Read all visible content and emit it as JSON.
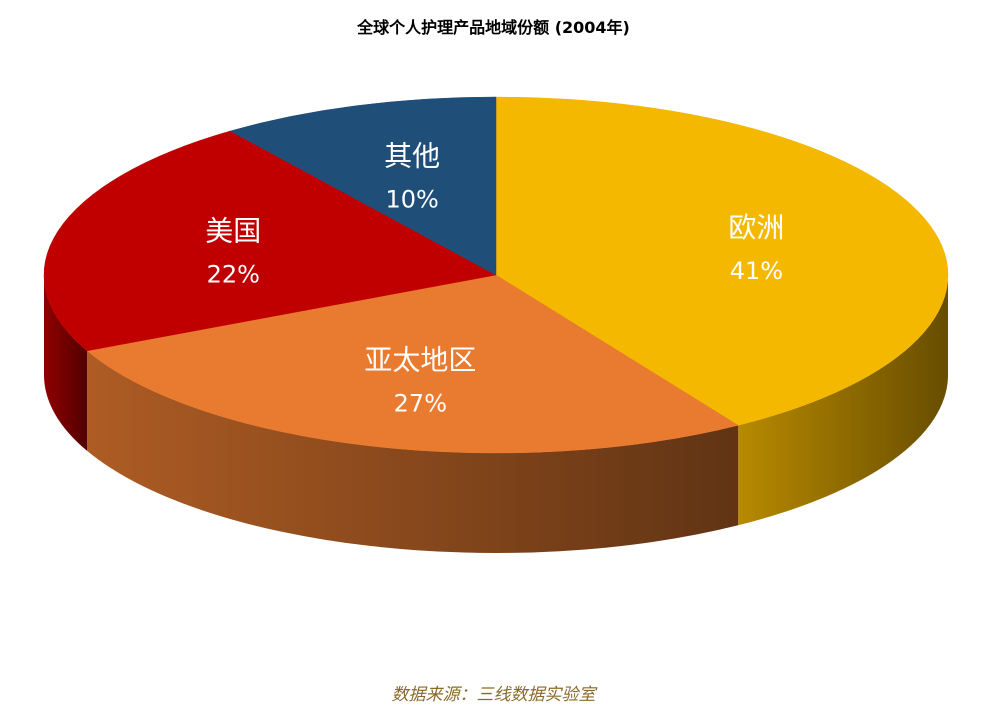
{
  "chart_data": {
    "type": "pie",
    "title": "全球个人护理产品地域份额 (2004年)",
    "categories": [
      "欧洲",
      "亚太地区",
      "美国",
      "其他"
    ],
    "values": [
      41,
      27,
      22,
      10
    ],
    "value_labels": [
      "41%",
      "27%",
      "22%",
      "10%"
    ],
    "colors": [
      "#F5B800",
      "#E87B30",
      "#C00000",
      "#1F4E79"
    ]
  },
  "source_note": "数据来源：三线数据实验室"
}
